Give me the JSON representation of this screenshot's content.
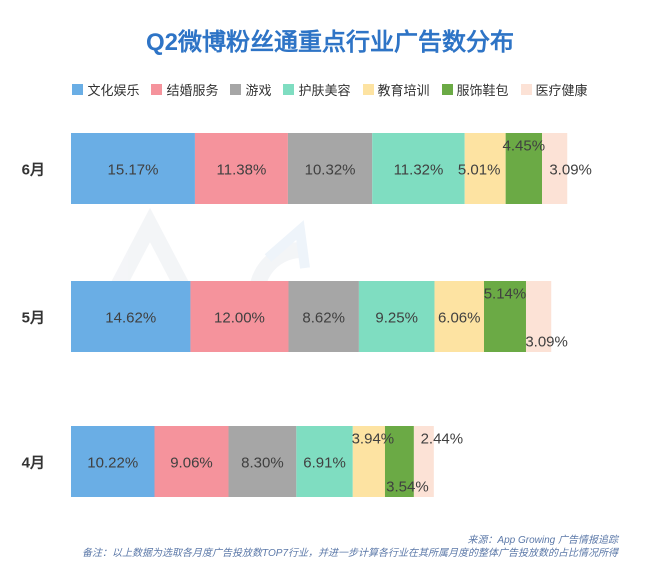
{
  "chart_data": {
    "type": "bar",
    "orientation": "horizontal-stacked",
    "title": "Q2微博粉丝通重点行业广告数分布",
    "legend_position": "top",
    "categories": [
      "6月",
      "5月",
      "4月"
    ],
    "series": [
      {
        "name": "文化娱乐",
        "color": "#6AAEE5",
        "values": [
          15.17,
          14.62,
          10.22
        ]
      },
      {
        "name": "结婚服务",
        "color": "#F5939C",
        "values": [
          11.38,
          12.0,
          9.06
        ]
      },
      {
        "name": "游戏",
        "color": "#A6A6A6",
        "values": [
          10.32,
          8.62,
          8.3
        ]
      },
      {
        "name": "护肤美容",
        "color": "#7FDDC1",
        "values": [
          11.32,
          9.25,
          6.91
        ]
      },
      {
        "name": "教育培训",
        "color": "#FDE3A2",
        "values": [
          5.01,
          6.06,
          3.94
        ]
      },
      {
        "name": "服饰鞋包",
        "color": "#6BAA45",
        "values": [
          4.45,
          5.14,
          3.54
        ]
      },
      {
        "name": "医疗健康",
        "color": "#FCE2D6",
        "values": [
          3.09,
          3.09,
          2.44
        ]
      }
    ],
    "labels": [
      [
        "15.17%",
        "11.38%",
        "10.32%",
        "11.32%",
        "5.01%",
        "4.45%",
        "3.09%"
      ],
      [
        "14.62%",
        "12.00%",
        "8.62%",
        "9.25%",
        "6.06%",
        "5.14%",
        "3.09%"
      ],
      [
        "10.22%",
        "9.06%",
        "8.30%",
        "6.91%",
        "3.94%",
        "3.54%",
        "2.44%"
      ]
    ],
    "grid": false
  },
  "footer": {
    "source": "来源：App Growing 广告情报追踪",
    "note": "备注：以上数据为选取各月度广告投放数TOP7行业，并进一步计算各行业在其所属月度的整体广告投放数的占比情况所得"
  },
  "watermark": "AppGrowing"
}
